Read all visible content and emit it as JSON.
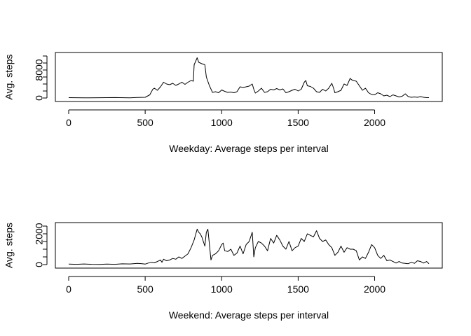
{
  "chart_data": [
    {
      "type": "line",
      "title": "",
      "xlabel": "Weekday: Average steps per interval",
      "ylabel": "Avg. steps",
      "xlim": [
        0,
        2355
      ],
      "ylim": [
        0,
        12000
      ],
      "grid": false,
      "xticks": [
        0,
        500,
        1000,
        1500,
        2000
      ],
      "xtick_labels": [
        "0",
        "500",
        "1000",
        "1500",
        "2000"
      ],
      "yticks": [
        0,
        2000,
        4000,
        6000,
        8000,
        10000,
        12000
      ],
      "ytick_labels": [
        "0",
        "",
        "",
        "",
        "8000",
        "",
        ""
      ],
      "series": [
        {
          "x": [
            0,
            100,
            200,
            300,
            400,
            450,
            500,
            530,
            550,
            560,
            580,
            600,
            620,
            640,
            660,
            680,
            700,
            720,
            740,
            760,
            780,
            800,
            815,
            820,
            830,
            840,
            850,
            870,
            890,
            900,
            920,
            940,
            960,
            980,
            1000,
            1020,
            1040,
            1060,
            1080,
            1100,
            1120,
            1140,
            1160,
            1180,
            1200,
            1210,
            1220,
            1240,
            1260,
            1280,
            1300,
            1320,
            1340,
            1360,
            1380,
            1400,
            1420,
            1440,
            1460,
            1480,
            1500,
            1520,
            1540,
            1550,
            1560,
            1580,
            1600,
            1620,
            1640,
            1660,
            1680,
            1700,
            1720,
            1730,
            1740,
            1760,
            1780,
            1800,
            1820,
            1840,
            1850,
            1860,
            1880,
            1900,
            1920,
            1940,
            1960,
            1980,
            2000,
            2020,
            2040,
            2060,
            2080,
            2100,
            2120,
            2140,
            2160,
            2180,
            2200,
            2220,
            2240,
            2260,
            2280,
            2300,
            2320,
            2340,
            2355
          ],
          "y": [
            100,
            50,
            80,
            120,
            50,
            150,
            200,
            900,
            2500,
            2800,
            2200,
            3200,
            4500,
            4000,
            3800,
            4200,
            3600,
            4000,
            4500,
            3900,
            4500,
            5000,
            4800,
            9500,
            10500,
            11500,
            10200,
            9800,
            9500,
            6000,
            3500,
            1600,
            1800,
            1500,
            2300,
            1900,
            1600,
            1700,
            1500,
            1800,
            3200,
            3000,
            3200,
            3400,
            4000,
            2500,
            1400,
            2000,
            2800,
            1600,
            1800,
            2500,
            2300,
            2700,
            2300,
            2600,
            1500,
            1800,
            2200,
            2500,
            2000,
            2500,
            4500,
            5000,
            3500,
            3300,
            2800,
            1800,
            1600,
            2500,
            2000,
            2800,
            4200,
            3000,
            1500,
            1800,
            2200,
            4000,
            3600,
            5600,
            5200,
            5000,
            4800,
            3500,
            2200,
            2800,
            1500,
            1000,
            900,
            1500,
            1200,
            600,
            800,
            400,
            900,
            600,
            300,
            500,
            1200,
            400,
            200,
            300,
            200,
            400,
            200,
            100,
            100
          ]
        }
      ]
    },
    {
      "type": "line",
      "title": "",
      "xlabel": "Weekend: Average steps per interval",
      "ylabel": "Avg. steps",
      "xlim": [
        0,
        2355
      ],
      "ylim": [
        0,
        2500
      ],
      "grid": false,
      "xticks": [
        0,
        500,
        1000,
        1500,
        2000
      ],
      "xtick_labels": [
        "0",
        "500",
        "1000",
        "1500",
        "2000"
      ],
      "yticks": [
        0,
        500,
        1000,
        1500,
        2000,
        2500
      ],
      "ytick_labels": [
        "0",
        "",
        "",
        "",
        "2000",
        ""
      ],
      "series": [
        {
          "x": [
            0,
            50,
            100,
            150,
            200,
            250,
            300,
            350,
            400,
            450,
            480,
            500,
            520,
            540,
            560,
            580,
            600,
            610,
            620,
            640,
            660,
            680,
            700,
            720,
            740,
            760,
            780,
            800,
            820,
            840,
            850,
            860,
            870,
            880,
            890,
            900,
            910,
            920,
            930,
            940,
            960,
            980,
            1000,
            1010,
            1020,
            1040,
            1060,
            1080,
            1100,
            1120,
            1140,
            1160,
            1180,
            1200,
            1210,
            1220,
            1240,
            1260,
            1280,
            1300,
            1320,
            1340,
            1360,
            1380,
            1400,
            1420,
            1440,
            1460,
            1480,
            1500,
            1520,
            1540,
            1560,
            1580,
            1600,
            1620,
            1640,
            1660,
            1680,
            1700,
            1720,
            1740,
            1760,
            1780,
            1800,
            1820,
            1840,
            1860,
            1880,
            1900,
            1920,
            1940,
            1960,
            1980,
            2000,
            2020,
            2040,
            2060,
            2080,
            2100,
            2120,
            2140,
            2160,
            2180,
            2200,
            2220,
            2240,
            2260,
            2280,
            2300,
            2320,
            2340,
            2355
          ],
          "y": [
            30,
            20,
            40,
            20,
            10,
            30,
            20,
            50,
            40,
            80,
            60,
            30,
            100,
            150,
            120,
            200,
            300,
            150,
            350,
            250,
            300,
            400,
            350,
            500,
            400,
            550,
            700,
            1100,
            1600,
            2300,
            2100,
            2000,
            1800,
            1500,
            1200,
            2100,
            2300,
            1300,
            300,
            600,
            700,
            900,
            1300,
            1400,
            900,
            850,
            1000,
            600,
            750,
            1200,
            700,
            1300,
            1500,
            2100,
            500,
            1100,
            1500,
            1400,
            1200,
            900,
            1700,
            1400,
            1900,
            1600,
            1200,
            1000,
            1500,
            900,
            1100,
            1200,
            1700,
            1500,
            2000,
            1900,
            1800,
            2200,
            1700,
            1500,
            1600,
            1300,
            1100,
            600,
            800,
            1200,
            800,
            1100,
            1000,
            1000,
            900,
            300,
            500,
            400,
            800,
            1300,
            1100,
            600,
            400,
            600,
            250,
            300,
            200,
            100,
            200,
            100,
            80,
            60,
            150,
            80,
            250,
            200,
            100,
            200,
            60
          ]
        }
      ]
    }
  ]
}
